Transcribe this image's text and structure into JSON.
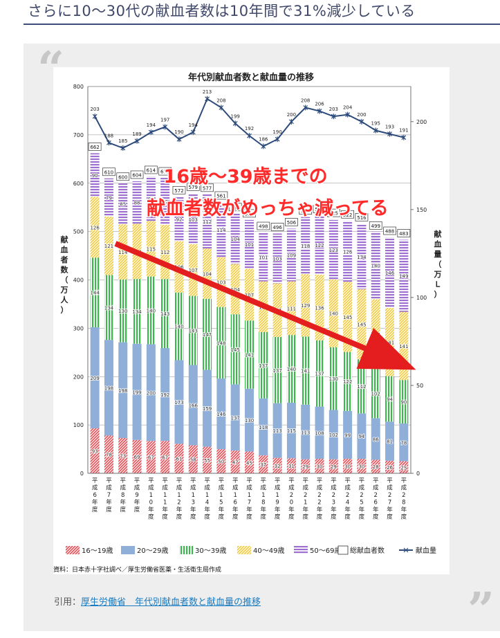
{
  "article": {
    "heading": "さらに10〜30代の献血者数は10年間で31%減少している",
    "citation_prefix": "引用：",
    "citation_link": "厚生労働省　年代別献血者数と献血量の推移"
  },
  "colors": {
    "age16_19": "#f0898d",
    "age20_29": "#8faed8",
    "age30_39": "#8fd79a",
    "age40_49": "#f5dc86",
    "age50_69": "#b18fd4",
    "volume_line": "#2c4a7a",
    "annotation_text": "#ff2a2a",
    "arrow": "#e41e1e"
  },
  "chart_data": {
    "type": "bar",
    "title": "年代別献血者数と献血量の推移",
    "ylabel": "献血者数（万人）",
    "y2label": "献血量（万Ｌ）",
    "ylim": [
      0,
      800
    ],
    "y2lim": [
      0,
      220
    ],
    "yticks": [
      0,
      100,
      200,
      300,
      400,
      500,
      600,
      700,
      800
    ],
    "y2ticks": [
      0,
      50,
      100,
      150,
      200
    ],
    "categories": [
      "平成6年度",
      "平成7年度",
      "平成8年度",
      "平成9年度",
      "平成10年度",
      "平成11年度",
      "平成12年度",
      "平成13年度",
      "平成14年度",
      "平成15年度",
      "平成16年度",
      "平成17年度",
      "平成18年度",
      "平成19年度",
      "平成20年度",
      "平成21年度",
      "平成22年度",
      "平成23年度",
      "平成24年度",
      "平成25年度",
      "平成26年度",
      "平成27年度",
      "平成28年度"
    ],
    "series": [
      {
        "name": "16〜19歳",
        "values": [
          93,
          78,
          73,
          69,
          67,
          67,
          61,
          58,
          55,
          50,
          47,
          45,
          37,
          32,
          31,
          29,
          30,
          29,
          30,
          30,
          28,
          26,
          25
        ]
      },
      {
        "name": "20〜29歳",
        "values": [
          209,
          198,
          198,
          199,
          200,
          192,
          173,
          166,
          159,
          146,
          137,
          130,
          118,
          113,
          115,
          113,
          108,
          102,
          99,
          94,
          86,
          81,
          78
        ]
      },
      {
        "name": "30〜39歳",
        "values": [
          144,
          134,
          130,
          134,
          140,
          143,
          140,
          143,
          147,
          148,
          145,
          141,
          137,
          137,
          140,
          141,
          137,
          130,
          122,
          112,
          102,
          94,
          90
        ]
      },
      {
        "name": "40〜49歳",
        "values": [
          126,
          121,
          114,
          114,
          115,
          112,
          106,
          107,
          104,
          103,
          104,
          107,
          105,
          111,
          111,
          129,
          136,
          140,
          145,
          145,
          144,
          141,
          141
        ]
      },
      {
        "name": "50〜69歳",
        "values": [
          90,
          79,
          85,
          88,
          92,
          97,
          92,
          103,
          112,
          114,
          104,
          101,
          101,
          103,
          109,
          118,
          122,
          123,
          126,
          134,
          140,
          146,
          149
        ]
      }
    ],
    "totals": [
      662,
      610,
      600,
      604,
      614,
      611,
      572,
      579,
      577,
      561,
      537,
      524,
      498,
      496,
      506,
      530,
      533,
      525,
      522,
      516,
      499,
      488,
      483
    ],
    "volume": {
      "name": "献血量",
      "values": [
        203,
        188,
        185,
        189,
        194,
        197,
        190,
        194,
        213,
        208,
        199,
        192,
        186,
        190,
        200,
        208,
        206,
        203,
        204,
        200,
        195,
        193,
        191
      ]
    },
    "legend": [
      "16〜19歳",
      "20〜29歳",
      "30〜39歳",
      "40〜49歳",
      "50〜69歳",
      "総献血者数",
      "献血量"
    ],
    "source": "資料：日本赤十字社調べ／厚生労働省医薬・生活衛生局作成",
    "annotation_line1": "16歳〜39歳までの",
    "annotation_line2": "献血者数がめっちゃ減ってる"
  }
}
